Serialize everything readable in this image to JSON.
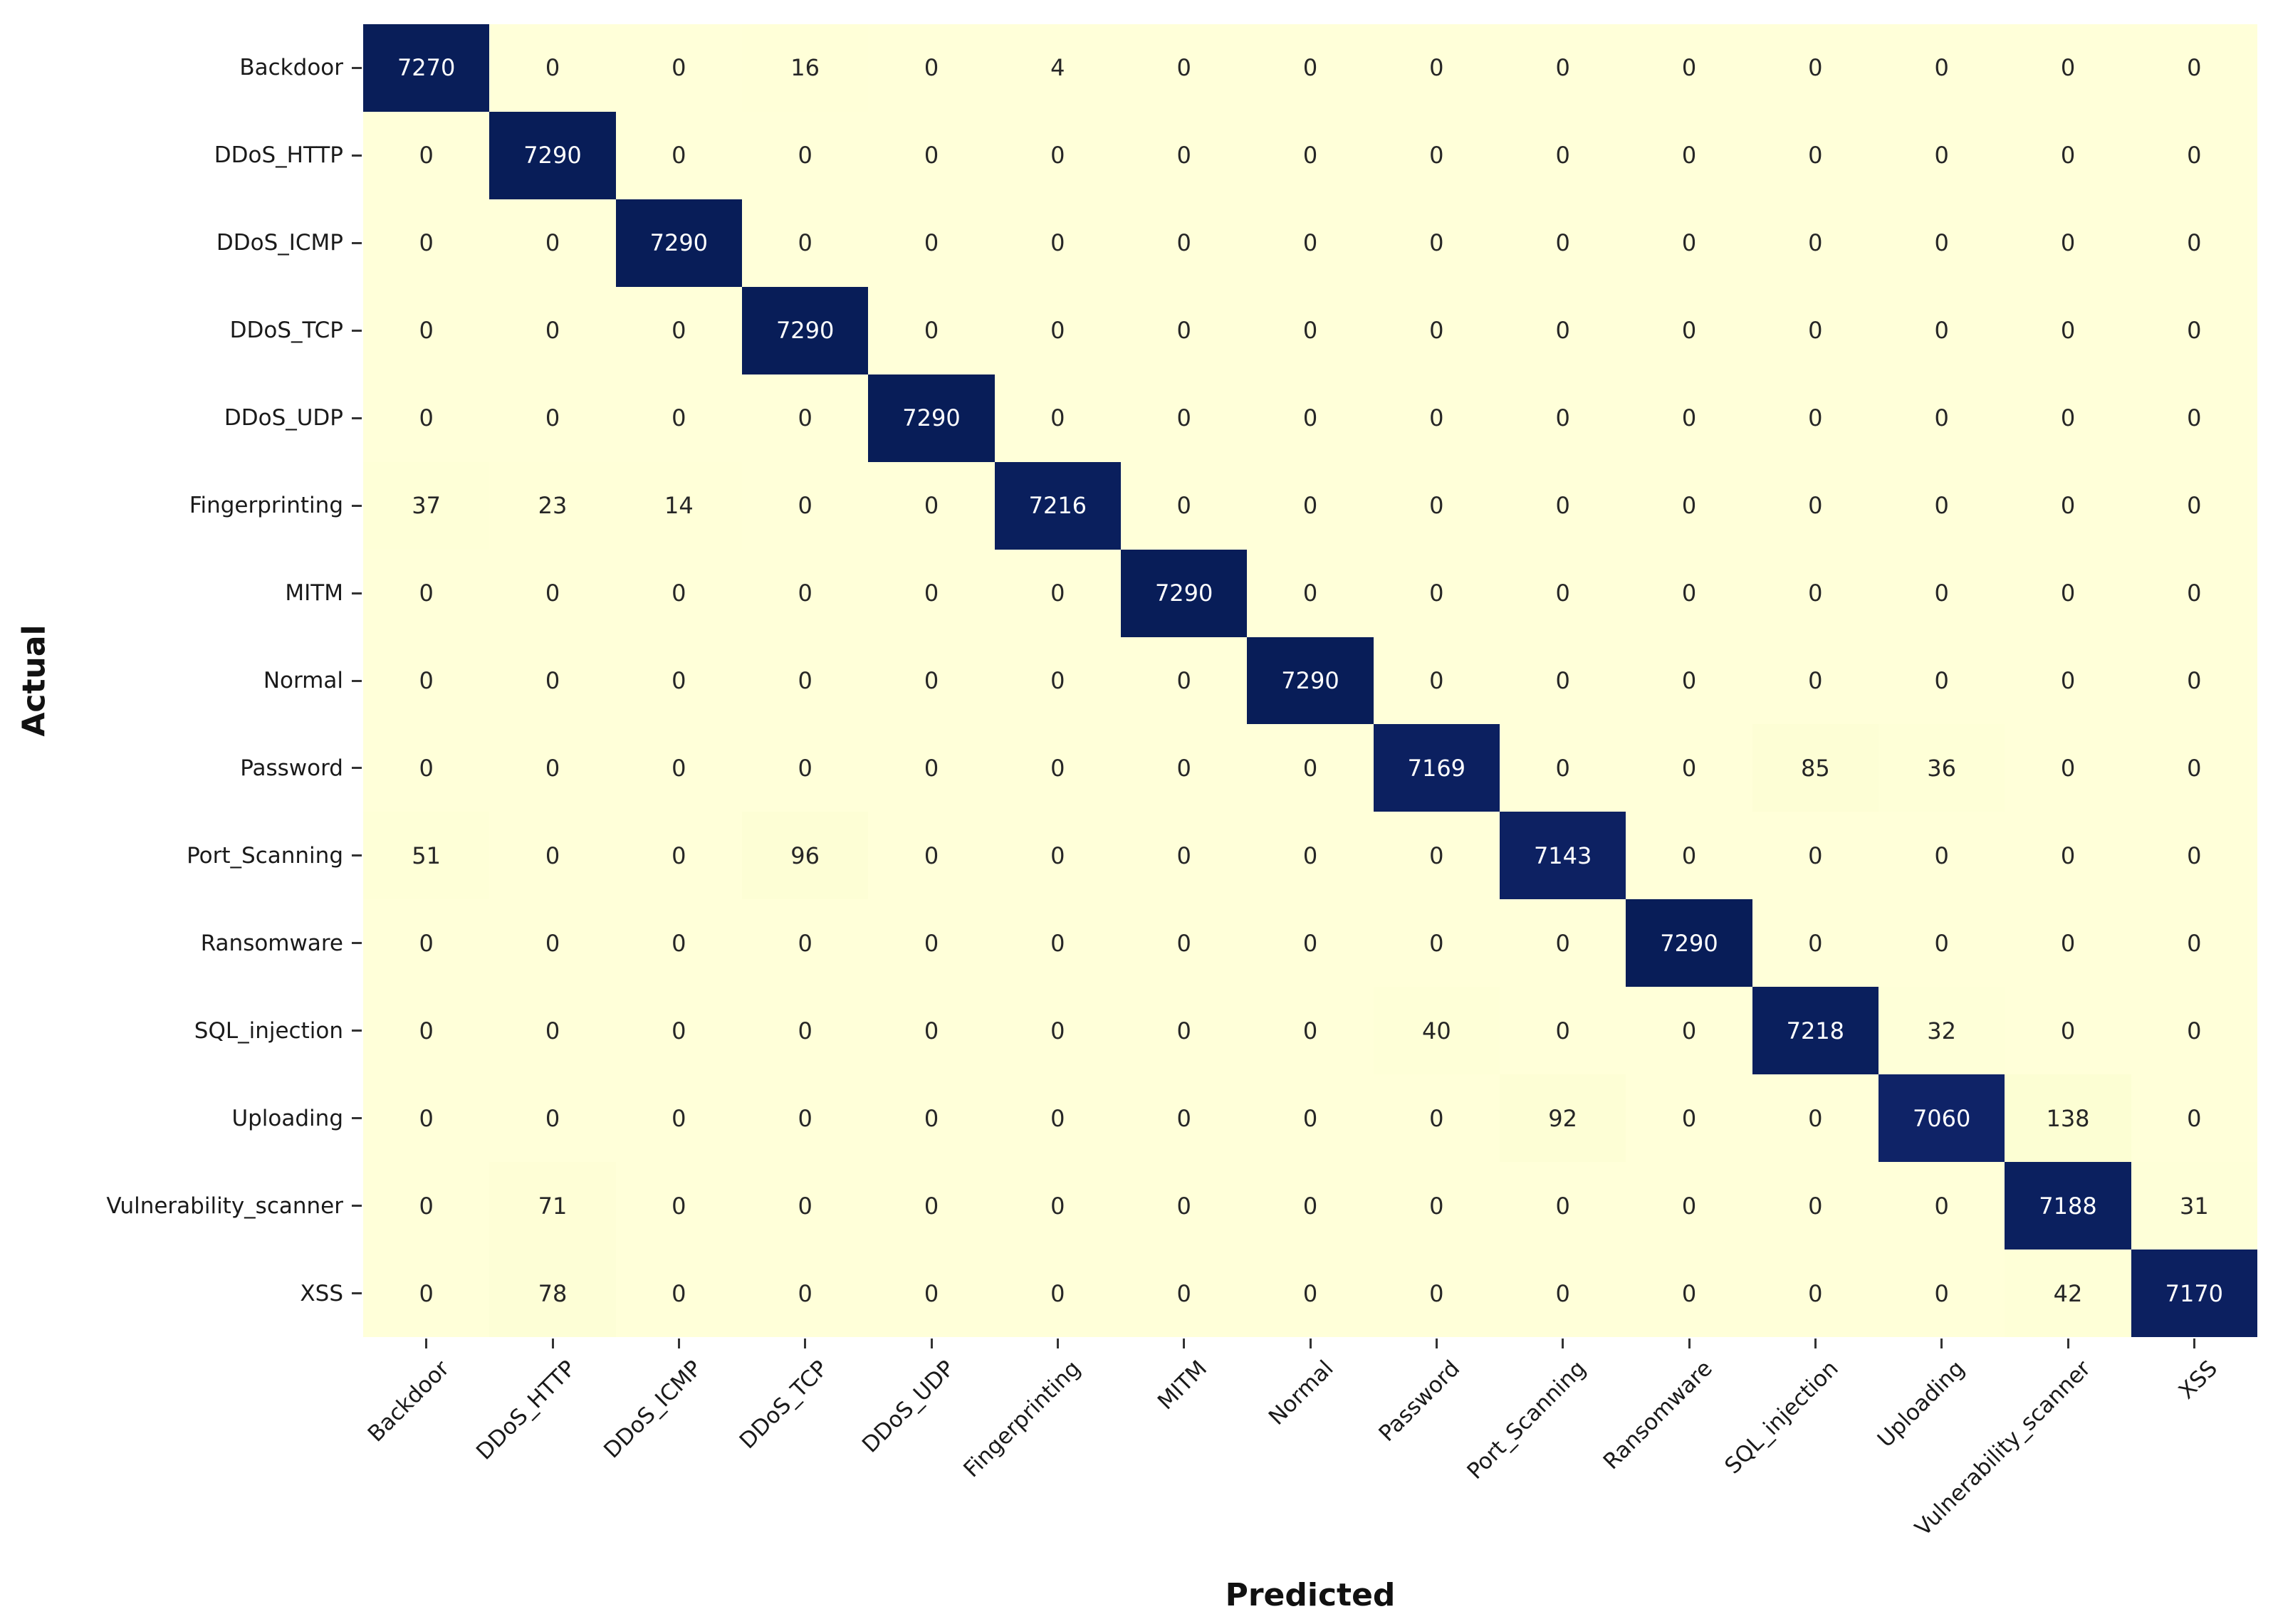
{
  "chart_data": {
    "type": "heatmap",
    "title": "",
    "xlabel": "Predicted",
    "ylabel": "Actual",
    "categories": [
      "Backdoor",
      "DDoS_HTTP",
      "DDoS_ICMP",
      "DDoS_TCP",
      "DDoS_UDP",
      "Fingerprinting",
      "MITM",
      "Normal",
      "Password",
      "Port_Scanning",
      "Ransomware",
      "SQL_injection",
      "Uploading",
      "Vulnerability_scanner",
      "XSS"
    ],
    "matrix": [
      [
        7270,
        0,
        0,
        16,
        0,
        4,
        0,
        0,
        0,
        0,
        0,
        0,
        0,
        0,
        0
      ],
      [
        0,
        7290,
        0,
        0,
        0,
        0,
        0,
        0,
        0,
        0,
        0,
        0,
        0,
        0,
        0
      ],
      [
        0,
        0,
        7290,
        0,
        0,
        0,
        0,
        0,
        0,
        0,
        0,
        0,
        0,
        0,
        0
      ],
      [
        0,
        0,
        0,
        7290,
        0,
        0,
        0,
        0,
        0,
        0,
        0,
        0,
        0,
        0,
        0
      ],
      [
        0,
        0,
        0,
        0,
        7290,
        0,
        0,
        0,
        0,
        0,
        0,
        0,
        0,
        0,
        0
      ],
      [
        37,
        23,
        14,
        0,
        0,
        7216,
        0,
        0,
        0,
        0,
        0,
        0,
        0,
        0,
        0
      ],
      [
        0,
        0,
        0,
        0,
        0,
        0,
        7290,
        0,
        0,
        0,
        0,
        0,
        0,
        0,
        0
      ],
      [
        0,
        0,
        0,
        0,
        0,
        0,
        0,
        7290,
        0,
        0,
        0,
        0,
        0,
        0,
        0
      ],
      [
        0,
        0,
        0,
        0,
        0,
        0,
        0,
        0,
        7169,
        0,
        0,
        85,
        36,
        0,
        0
      ],
      [
        51,
        0,
        0,
        96,
        0,
        0,
        0,
        0,
        0,
        7143,
        0,
        0,
        0,
        0,
        0
      ],
      [
        0,
        0,
        0,
        0,
        0,
        0,
        0,
        0,
        0,
        0,
        7290,
        0,
        0,
        0,
        0
      ],
      [
        0,
        0,
        0,
        0,
        0,
        0,
        0,
        0,
        40,
        0,
        0,
        7218,
        32,
        0,
        0
      ],
      [
        0,
        0,
        0,
        0,
        0,
        0,
        0,
        0,
        0,
        92,
        0,
        0,
        7060,
        138,
        0
      ],
      [
        0,
        71,
        0,
        0,
        0,
        0,
        0,
        0,
        0,
        0,
        0,
        0,
        0,
        7188,
        31
      ],
      [
        0,
        78,
        0,
        0,
        0,
        0,
        0,
        0,
        0,
        0,
        0,
        0,
        0,
        42,
        7170
      ]
    ],
    "vmin": 0,
    "vmax": 7290,
    "grid": false,
    "legend": "none",
    "colormap_name": "YlGnBu",
    "colormap_stops": [
      [
        0.0,
        "#ffffd9"
      ],
      [
        0.125,
        "#edf8b1"
      ],
      [
        0.25,
        "#c7e9b4"
      ],
      [
        0.375,
        "#7fcdbb"
      ],
      [
        0.5,
        "#41b6c4"
      ],
      [
        0.625,
        "#1d91c0"
      ],
      [
        0.75,
        "#225ea8"
      ],
      [
        0.875,
        "#253494"
      ],
      [
        1.0,
        "#081d58"
      ]
    ],
    "annot_color_dark_cells": "#ffffff",
    "annot_color_light_cells": "#262626",
    "tick_color": "#333333",
    "figure_background": "#ffffff"
  }
}
